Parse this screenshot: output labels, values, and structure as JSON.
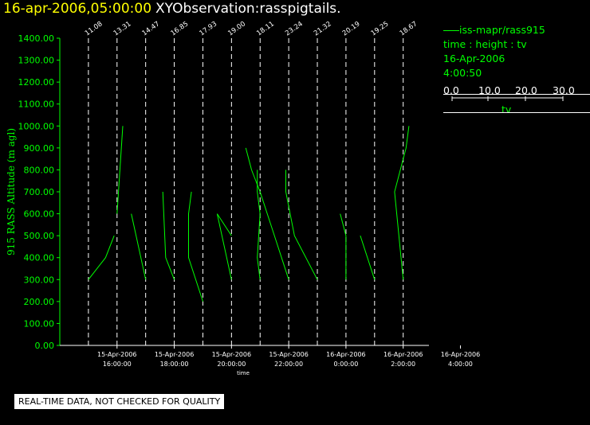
{
  "header": {
    "datetime": "16-apr-2006,05:00:00",
    "title": "XYObservation:rasspigtails."
  },
  "legend": {
    "series": "iss-mapr/rass915",
    "fields": "time : height : tv",
    "date": "16-Apr-2006",
    "time": "4:00:50",
    "scale_ticks": [
      "0.0",
      "10.0",
      "20.0",
      "30.0"
    ],
    "scale_label": "tv"
  },
  "qc_note": "REAL-TIME DATA, NOT CHECKED FOR QUALITY",
  "chart_data": {
    "type": "line",
    "ylabel": "915 RASS Altitude (m agl)",
    "xlabel": "time",
    "ylim": [
      0,
      1400
    ],
    "yticks": [
      "0.00",
      "100.00",
      "200.00",
      "300.00",
      "400.00",
      "500.00",
      "600.00",
      "700.00",
      "800.00",
      "900.00",
      "1000.00",
      "1100.00",
      "1200.00",
      "1300.00",
      "1400.00"
    ],
    "xtick_labels": [
      {
        "hour": 16,
        "date": "15-Apr-2006",
        "time": "16:00:00"
      },
      {
        "hour": 18,
        "date": "15-Apr-2006",
        "time": "18:00:00"
      },
      {
        "hour": 20,
        "date": "15-Apr-2006",
        "time": "20:00:00"
      },
      {
        "hour": 22,
        "date": "15-Apr-2006",
        "time": "22:00:00"
      },
      {
        "hour": 24,
        "date": "16-Apr-2006",
        "time": "0:00:00"
      },
      {
        "hour": 26,
        "date": "16-Apr-2006",
        "time": "2:00:00"
      },
      {
        "hour": 28,
        "date": "16-Apr-2006",
        "time": "4:00:00"
      }
    ],
    "tv_scale_hours_per_10": 1,
    "profiles": [
      {
        "hour": 15.0,
        "label": "11.08",
        "points": [
          [
            300,
            0.0
          ],
          [
            400,
            0.6
          ],
          [
            500,
            0.9
          ]
        ]
      },
      {
        "hour": 16.0,
        "label": "13.31",
        "points": [
          [
            600,
            0.0
          ],
          [
            1000,
            0.2
          ]
        ]
      },
      {
        "hour": 17.0,
        "label": "14.47",
        "points": [
          [
            300,
            0.0
          ],
          [
            600,
            -0.5
          ]
        ]
      },
      {
        "hour": 18.0,
        "label": "16.85",
        "points": [
          [
            300,
            0.0
          ],
          [
            400,
            -0.3
          ],
          [
            700,
            -0.4
          ]
        ]
      },
      {
        "hour": 19.0,
        "label": "17.93",
        "points": [
          [
            200,
            0.0
          ],
          [
            400,
            -0.5
          ],
          [
            600,
            -0.5
          ],
          [
            700,
            -0.4
          ]
        ]
      },
      {
        "hour": 20.0,
        "label": "19.00",
        "points": [
          [
            500,
            0.0
          ],
          [
            600,
            -0.5
          ],
          [
            300,
            0.0
          ]
        ]
      },
      {
        "hour": 21.0,
        "label": "18.11",
        "points": [
          [
            300,
            0.0
          ],
          [
            400,
            -0.1
          ],
          [
            600,
            0.0
          ],
          [
            700,
            -0.1
          ],
          [
            800,
            -0.1
          ]
        ]
      },
      {
        "hour": 22.0,
        "label": "23.24",
        "points": [
          [
            300,
            0.0
          ],
          [
            500,
            -0.5
          ],
          [
            700,
            -1.0
          ],
          [
            800,
            -1.3
          ],
          [
            900,
            -1.5
          ]
        ]
      },
      {
        "hour": 23.0,
        "label": "21.32",
        "points": [
          [
            300,
            0.0
          ],
          [
            500,
            -0.8
          ],
          [
            700,
            -1.1
          ],
          [
            800,
            -1.1
          ]
        ]
      },
      {
        "hour": 24.0,
        "label": "20.19",
        "points": [
          [
            300,
            0.0
          ],
          [
            500,
            0.0
          ],
          [
            600,
            -0.2
          ]
        ]
      },
      {
        "hour": 25.0,
        "label": "19.25",
        "points": [
          [
            300,
            0.0
          ],
          [
            500,
            -0.5
          ]
        ]
      },
      {
        "hour": 26.0,
        "label": "18.67",
        "points": [
          [
            300,
            0.0
          ],
          [
            700,
            -0.3
          ],
          [
            900,
            0.1
          ],
          [
            1000,
            0.2
          ]
        ]
      }
    ],
    "colors": {
      "profile": "#00ff00",
      "axis": "#ffffff",
      "ytext": "#00ff00",
      "xtext": "#ffffff"
    }
  }
}
